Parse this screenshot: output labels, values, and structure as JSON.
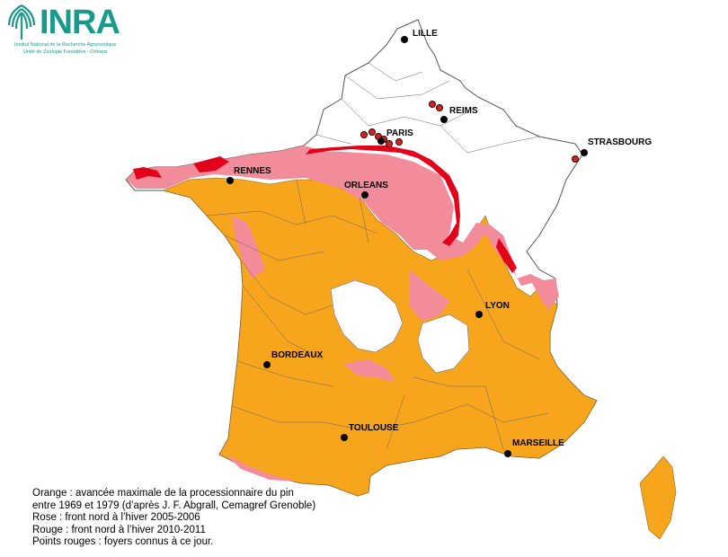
{
  "logo": {
    "word": "INRA",
    "line1": "Institut National de la Recherche Agronomique",
    "line2": "Unité de Zoologie Forestière - Orléans"
  },
  "colors": {
    "orange": "#f7a51c",
    "pink": "#f28c9a",
    "red": "#e2001a",
    "border": "#666666",
    "logo": "#1a9a8a"
  },
  "cities": [
    {
      "id": "lille",
      "label": "LILLE"
    },
    {
      "id": "reims",
      "label": "REIMS"
    },
    {
      "id": "paris",
      "label": "PARIS"
    },
    {
      "id": "strasbourg",
      "label": "STRASBOURG"
    },
    {
      "id": "rennes",
      "label": "RENNES"
    },
    {
      "id": "orleans",
      "label": "ORLEANS"
    },
    {
      "id": "lyon",
      "label": "LYON"
    },
    {
      "id": "bordeaux",
      "label": "BORDEAUX"
    },
    {
      "id": "toulouse",
      "label": "TOULOUSE"
    },
    {
      "id": "marseille",
      "label": "MARSEILLE"
    }
  ],
  "legend": [
    "Orange : avancée maximale de la processionnaire du pin",
    "entre 1969 et 1979 (d’après J. F. Abgrall, Cemagref Grenoble)",
    "Rose : front nord à l’hiver 2005-2006",
    "Rouge : front nord à l’hiver 2010-2011",
    "Points rouges : foyers connus à ce jour."
  ]
}
